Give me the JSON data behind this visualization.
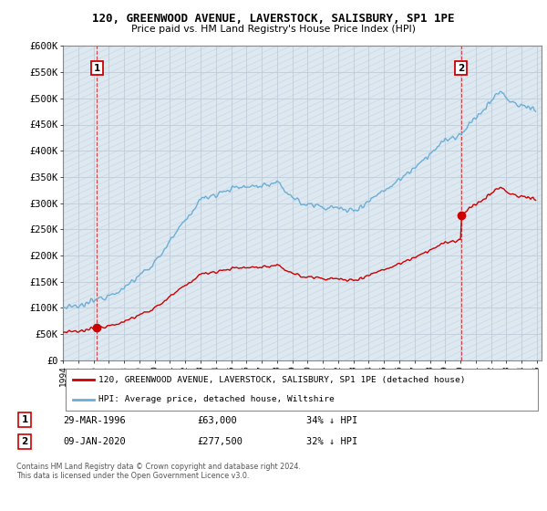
{
  "title1": "120, GREENWOOD AVENUE, LAVERSTOCK, SALISBURY, SP1 1PE",
  "title2": "Price paid vs. HM Land Registry's House Price Index (HPI)",
  "legend_label1": "120, GREENWOOD AVENUE, LAVERSTOCK, SALISBURY, SP1 1PE (detached house)",
  "legend_label2": "HPI: Average price, detached house, Wiltshire",
  "color1": "#cc0000",
  "color2": "#6baed6",
  "background_color": "#dde8f0",
  "annotation1_label": "1",
  "annotation2_label": "2",
  "ylabel_ticks": [
    "£0",
    "£50K",
    "£100K",
    "£150K",
    "£200K",
    "£250K",
    "£300K",
    "£350K",
    "£400K",
    "£450K",
    "£500K",
    "£550K",
    "£600K"
  ],
  "ytick_values": [
    0,
    50000,
    100000,
    150000,
    200000,
    250000,
    300000,
    350000,
    400000,
    450000,
    500000,
    550000,
    600000
  ],
  "footer": "Contains HM Land Registry data © Crown copyright and database right 2024.\nThis data is licensed under the Open Government Licence v3.0.",
  "sale1_year": 1996.23,
  "sale1_price": 63000,
  "sale2_year": 2020.03,
  "sale2_price": 277500,
  "row1_date": "29-MAR-1996",
  "row1_amount": "£63,000",
  "row1_pct": "34% ↓ HPI",
  "row2_date": "09-JAN-2020",
  "row2_amount": "£277,500",
  "row2_pct": "32% ↓ HPI"
}
